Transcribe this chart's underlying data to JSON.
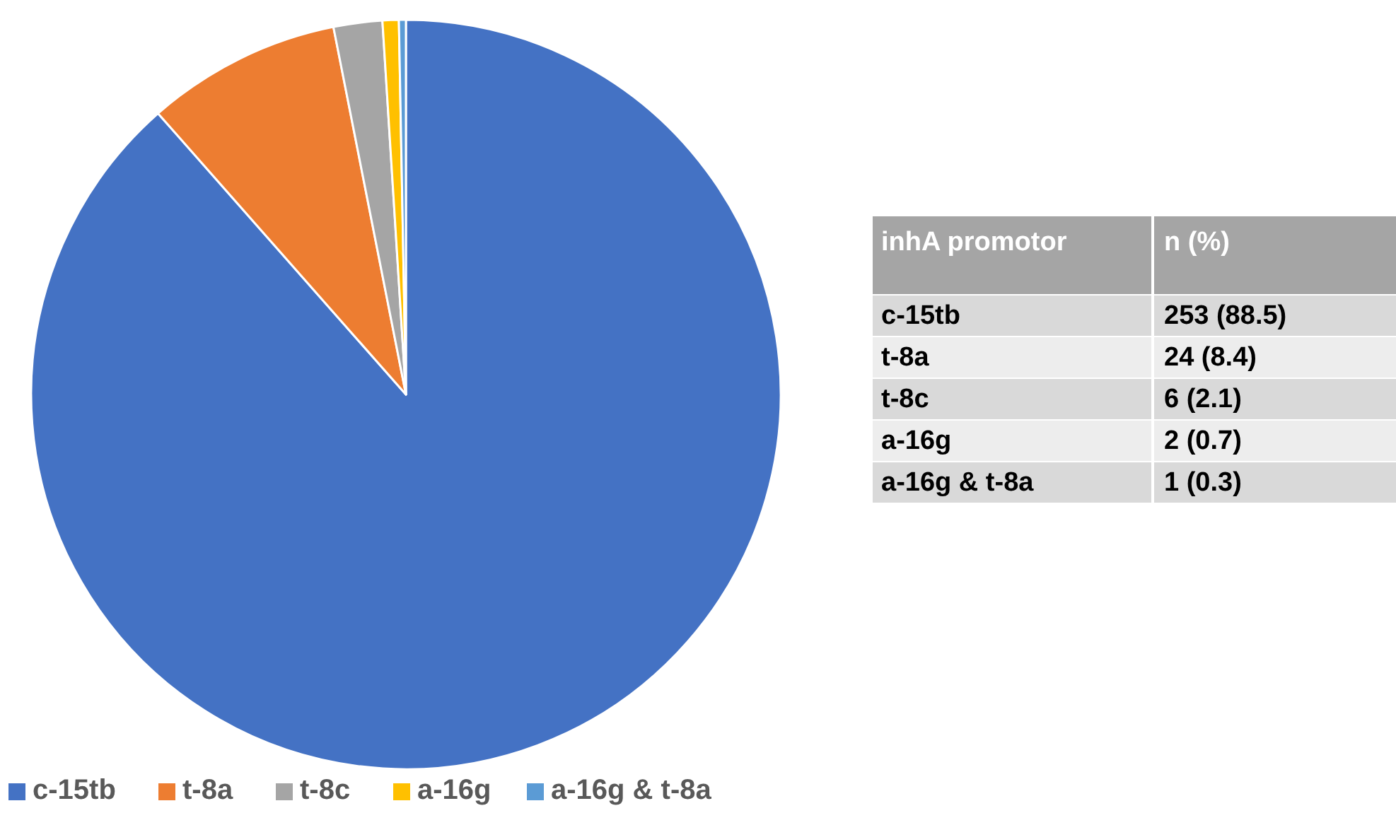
{
  "chart_data": [
    {
      "type": "pie",
      "categories": [
        "c-15tb",
        "t-8a",
        "t-8c",
        "a-16g",
        "a-16g & t-8a"
      ],
      "values": [
        88.5,
        8.4,
        2.1,
        0.7,
        0.3
      ],
      "colors": [
        "#4472c4",
        "#ed7d31",
        "#a5a5a5",
        "#ffc000",
        "#5b9bd5"
      ],
      "legend": "bottom left"
    },
    {
      "type": "other",
      "annotations": [
        "inhA promotor",
        "n (%)",
        "c-15tb",
        "253 (88.5)",
        "t-8a",
        "24 (8.4)",
        "t-8c",
        "6 (2.1)",
        "a-16g",
        "2 (0.7)",
        "a-16g & t-8a",
        "1 (0.3)"
      ]
    }
  ]
}
